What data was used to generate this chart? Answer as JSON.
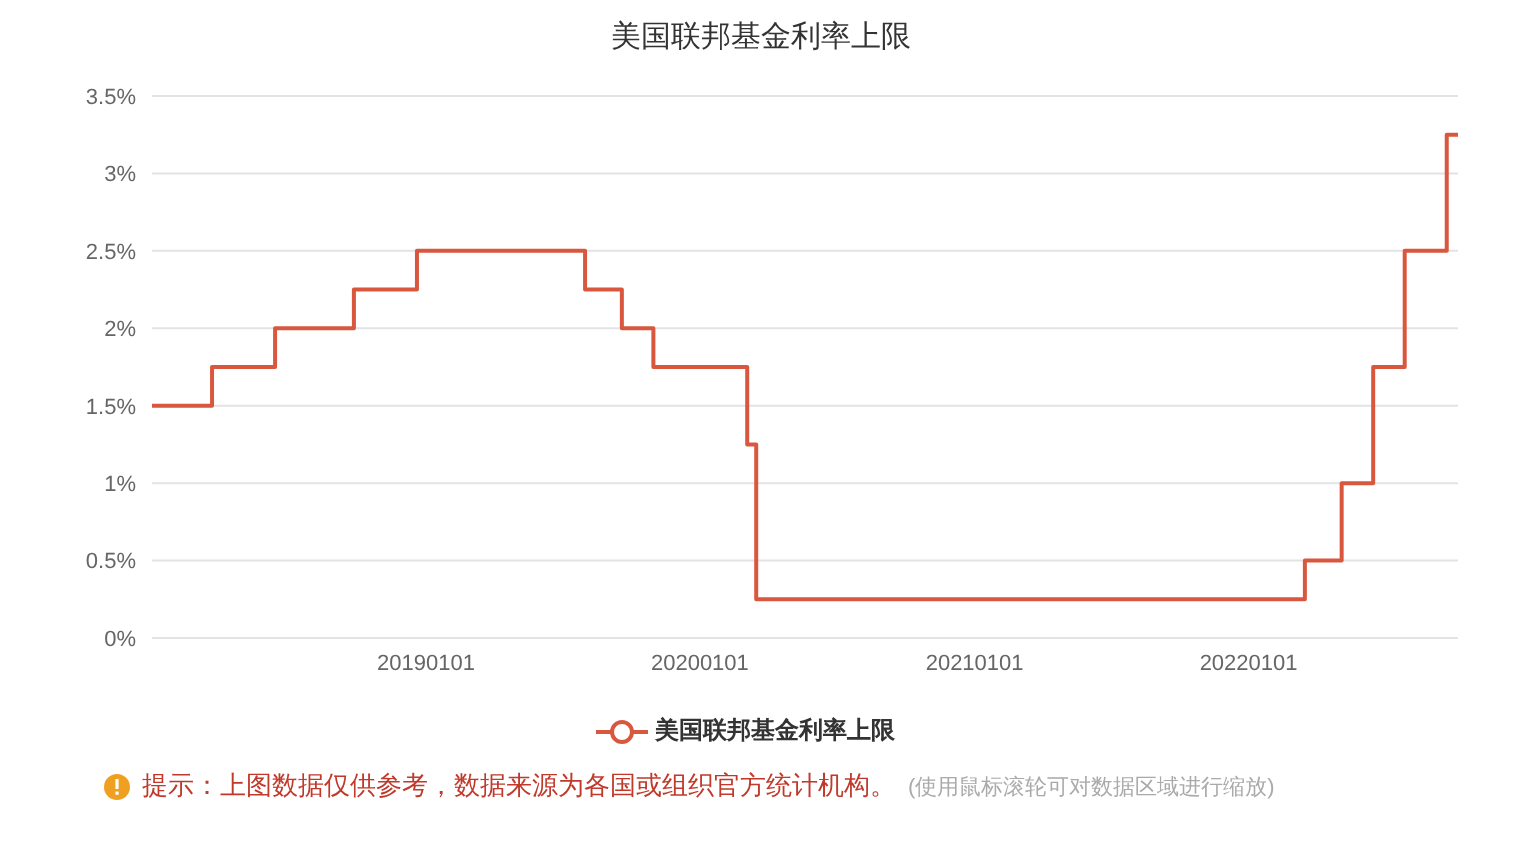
{
  "chart_data": {
    "type": "step",
    "title": "美国联邦基金利率上限",
    "x": [
      "2018-01-01",
      "2018-03-22",
      "2018-06-14",
      "2018-09-27",
      "2018-12-20",
      "2019-08-01",
      "2019-09-19",
      "2019-10-31",
      "2020-03-04",
      "2020-03-16",
      "2022-03-17",
      "2022-05-05",
      "2022-06-16",
      "2022-07-28",
      "2022-09-22",
      "2022-10-07"
    ],
    "series": [
      {
        "name": "美国联邦基金利率上限",
        "color": "#d9573f",
        "values": [
          1.5,
          1.75,
          2.0,
          2.25,
          2.5,
          2.25,
          2.0,
          1.75,
          1.25,
          0.25,
          0.5,
          1.0,
          1.75,
          2.5,
          3.25,
          3.25
        ]
      }
    ],
    "xlim": [
      "2018-01-01",
      "2022-10-07"
    ],
    "xticks": [
      {
        "value": "2019-01-01",
        "label": "20190101"
      },
      {
        "value": "2020-01-01",
        "label": "20200101"
      },
      {
        "value": "2021-01-01",
        "label": "20210101"
      },
      {
        "value": "2022-01-01",
        "label": "20220101"
      }
    ],
    "ylim": [
      0,
      3.5
    ],
    "yticks": [
      {
        "value": 0,
        "label": "0%"
      },
      {
        "value": 0.5,
        "label": "0.5%"
      },
      {
        "value": 1,
        "label": "1%"
      },
      {
        "value": 1.5,
        "label": "1.5%"
      },
      {
        "value": 2,
        "label": "2%"
      },
      {
        "value": 2.5,
        "label": "2.5%"
      },
      {
        "value": 3,
        "label": "3%"
      },
      {
        "value": 3.5,
        "label": "3.5%"
      }
    ],
    "grid": "y",
    "legend": "bottom",
    "marker": "none",
    "line_style": "solid",
    "annotations": [
      "提示：上图数据仅供参考，数据来源为各国或组织官方统计机构。",
      "(使用鼠标滚轮可对数据区域进行缩放)"
    ]
  }
}
